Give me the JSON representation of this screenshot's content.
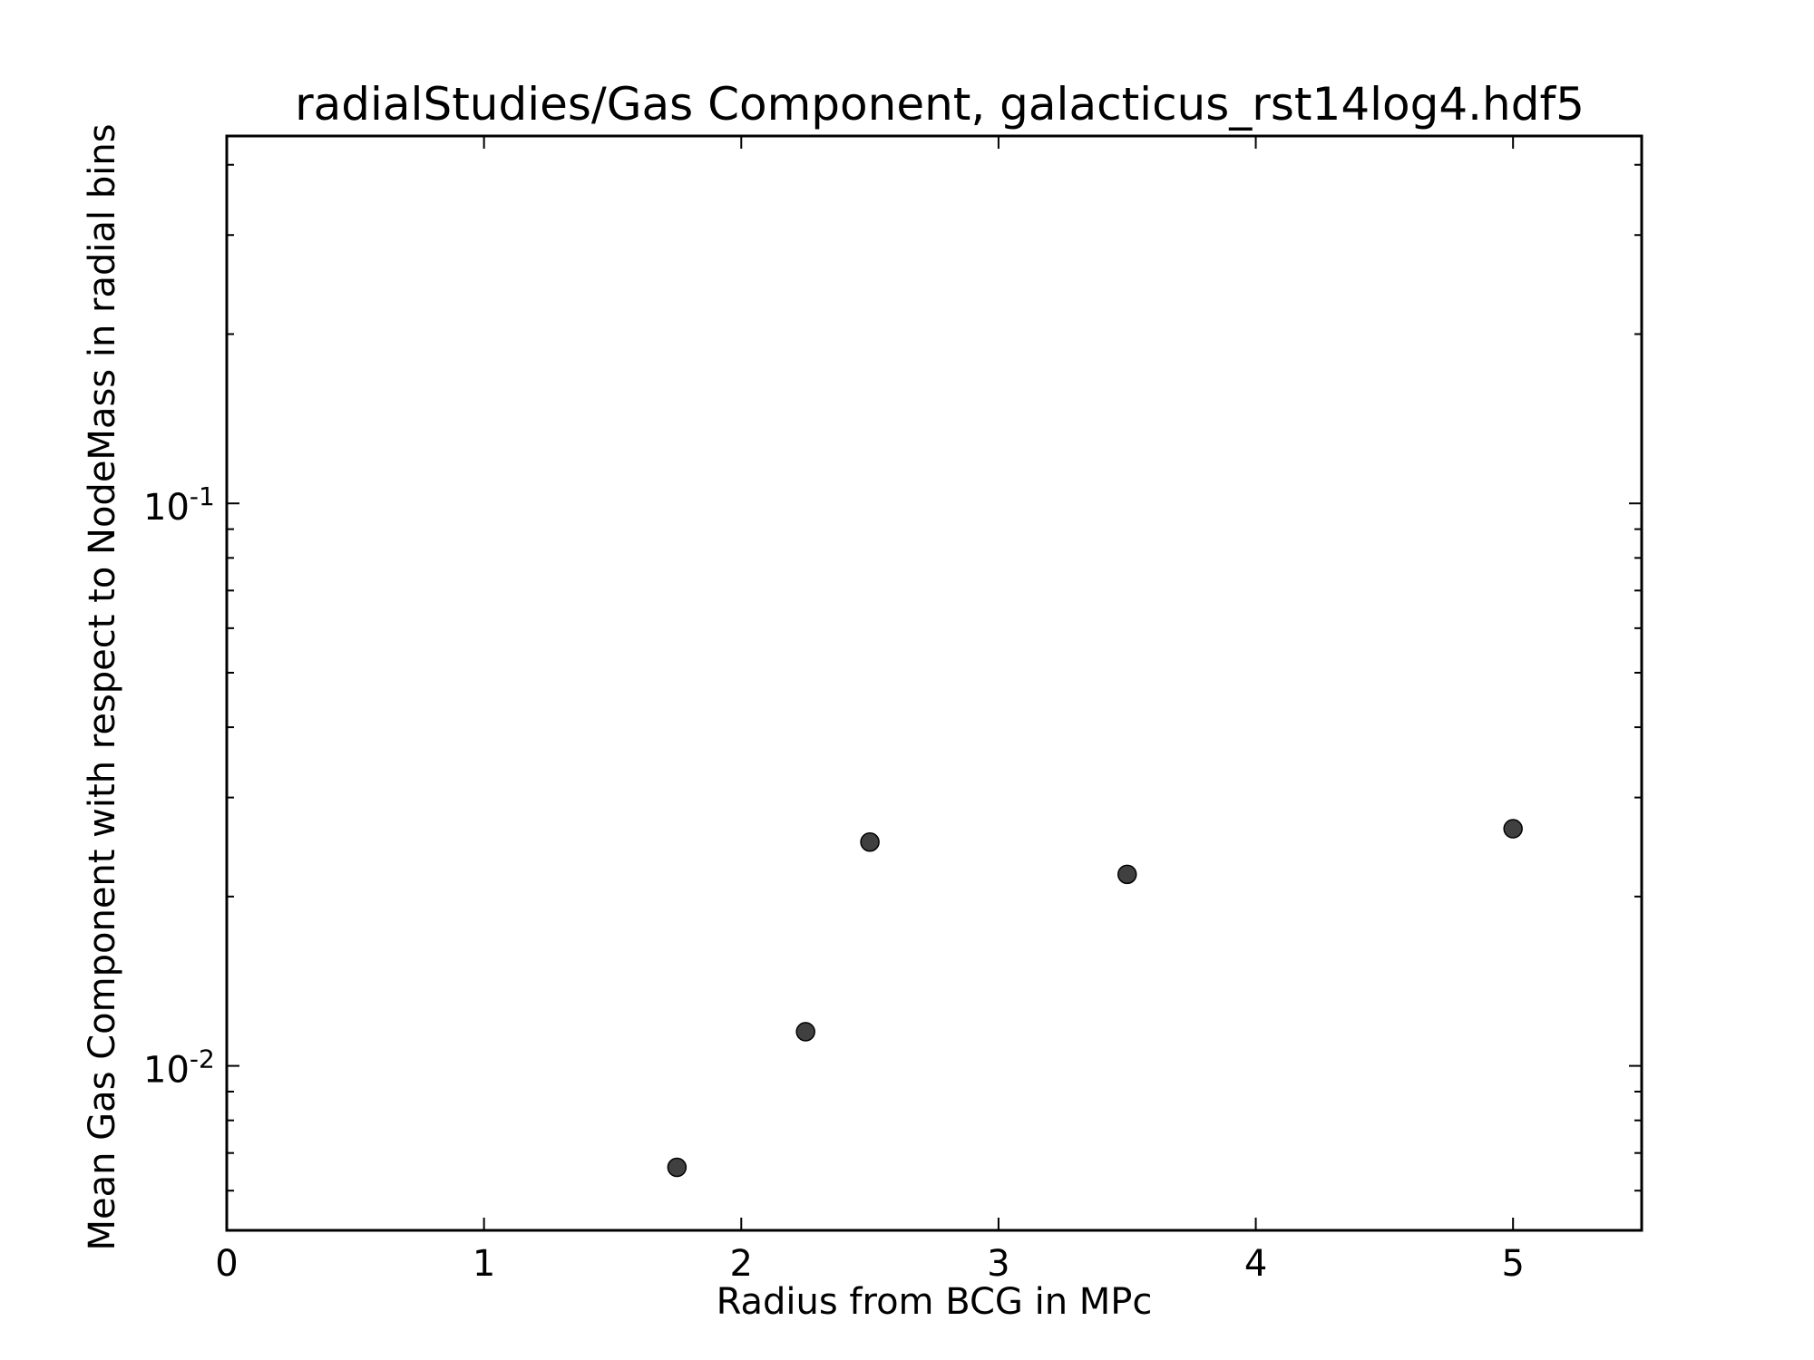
{
  "chart_data": {
    "type": "scatter",
    "title": "radialStudies/Gas Component, galacticus_rst14log4.hdf5",
    "xlabel": "Radius from BCG in MPc",
    "ylabel": "Mean Gas Component with respect to NodeMass in radial bins",
    "xlim": [
      0,
      5.5
    ],
    "ylim": [
      0.0051,
      0.45
    ],
    "yscale": "log",
    "grid": false,
    "x_ticks": [
      {
        "value": 0,
        "label": "0"
      },
      {
        "value": 1,
        "label": "1"
      },
      {
        "value": 2,
        "label": "2"
      },
      {
        "value": 3,
        "label": "3"
      },
      {
        "value": 4,
        "label": "4"
      },
      {
        "value": 5,
        "label": "5"
      }
    ],
    "y_ticks": [
      {
        "value": 0.1,
        "base": "10",
        "exp": "-1"
      },
      {
        "value": 0.01,
        "base": "10",
        "exp": "-2"
      }
    ],
    "y_minor_ticks": [
      0.006,
      0.007,
      0.008,
      0.009,
      0.02,
      0.03,
      0.04,
      0.05,
      0.06,
      0.07,
      0.08,
      0.09,
      0.2,
      0.3,
      0.4
    ],
    "marker_color": "#404040",
    "points": [
      {
        "x": 1.75,
        "y": 0.0066
      },
      {
        "x": 2.25,
        "y": 0.0115
      },
      {
        "x": 2.5,
        "y": 0.025
      },
      {
        "x": 3.5,
        "y": 0.0219
      },
      {
        "x": 5.0,
        "y": 0.0264
      }
    ]
  }
}
